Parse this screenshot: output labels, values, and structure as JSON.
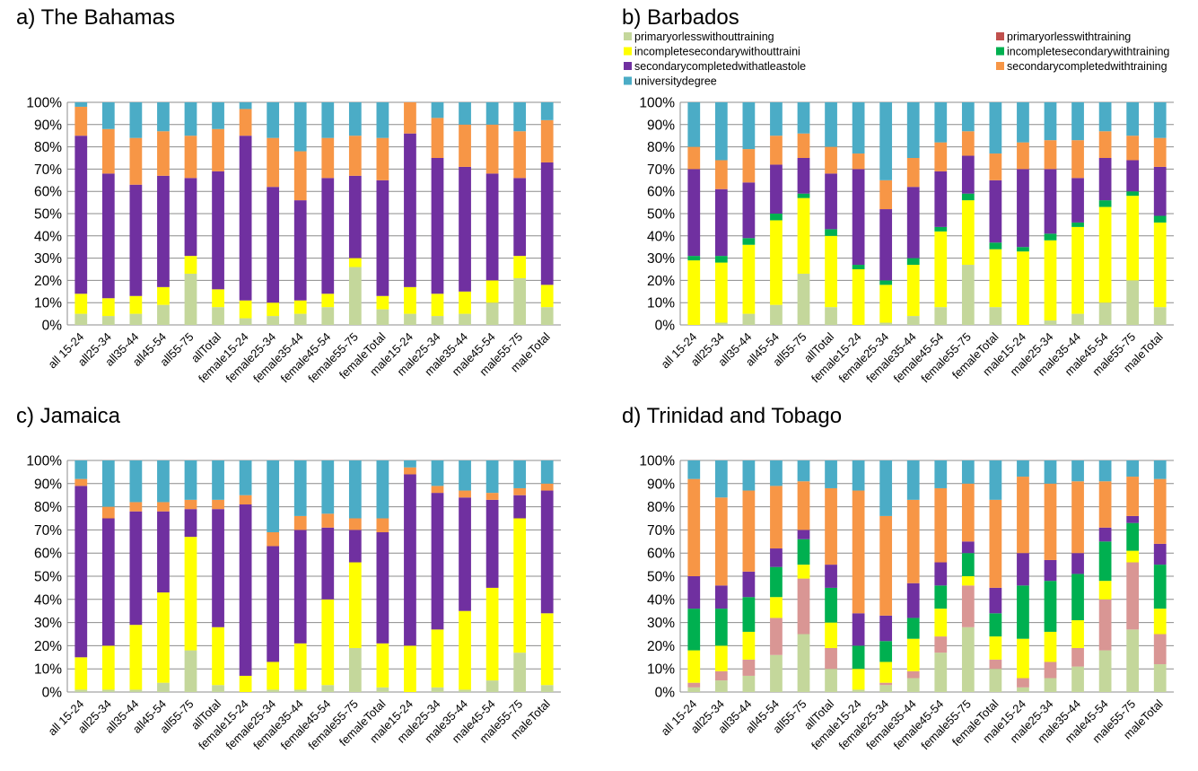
{
  "categories": [
    "all 15-24",
    "all25-34",
    "all35-44",
    "all45-54",
    "all55-75",
    "allTotal",
    "female15-24",
    "female25-34",
    "female35-44",
    "female45-54",
    "female55-75",
    "femaleTotal",
    "male15-24",
    "male25-34",
    "male35-44",
    "male45-54",
    "male55-75",
    "maleTotal"
  ],
  "series_names": [
    "primaryorlesswithouttraining",
    "primaryorlesswithtraining",
    "incompletesecondarywithouttraini",
    "incompletesecondarywithtraining",
    "secondarycompletedwithatleastole",
    "secondarycompletedwithtraining",
    "universitydegree"
  ],
  "colors": {
    "primaryorlesswithouttraining": "#c4d79b",
    "primaryorlesswithtraining": "#c0504d",
    "primaryorlesswithtraining_tt": "#d99694",
    "incompletesecondarywithouttraini": "#ffff00",
    "incompletesecondarywithtraining": "#00b050",
    "secondarycompletedwithatleastole": "#7030a0",
    "secondarycompletedwithtraining": "#f79646",
    "universitydegree": "#4bacc6"
  },
  "y_ticks": [
    "0%",
    "10%",
    "20%",
    "30%",
    "40%",
    "50%",
    "60%",
    "70%",
    "80%",
    "90%",
    "100%"
  ],
  "chart_data": [
    {
      "type": "bar",
      "stacked": true,
      "title": "The Bahamas",
      "panel_letter": "a)",
      "ylim": [
        0,
        100
      ],
      "legend": "none",
      "series": [
        {
          "name": "primaryorlesswithouttraining",
          "values": [
            5,
            4,
            5,
            9,
            23,
            8,
            3,
            4,
            5,
            8,
            26,
            7,
            5,
            4,
            5,
            10,
            21,
            8
          ]
        },
        {
          "name": "primaryorlesswithtraining",
          "values": [
            0,
            0,
            0,
            0,
            0,
            0,
            0,
            0,
            0,
            0,
            0,
            0,
            0,
            0,
            0,
            0,
            0,
            0
          ]
        },
        {
          "name": "incompletesecondarywithouttraini",
          "values": [
            9,
            8,
            8,
            8,
            8,
            8,
            8,
            6,
            6,
            6,
            4,
            6,
            12,
            10,
            10,
            10,
            10,
            10
          ]
        },
        {
          "name": "incompletesecondarywithtraining",
          "values": [
            0,
            0,
            0,
            0,
            0,
            0,
            0,
            0,
            0,
            0,
            0,
            0,
            0,
            0,
            0,
            0,
            0,
            0
          ]
        },
        {
          "name": "secondarycompletedwithatleastole",
          "values": [
            71,
            56,
            50,
            50,
            35,
            53,
            74,
            52,
            45,
            52,
            37,
            52,
            69,
            61,
            56,
            48,
            35,
            55
          ]
        },
        {
          "name": "secondarycompletedwithtraining",
          "values": [
            13,
            20,
            21,
            20,
            19,
            19,
            12,
            22,
            22,
            18,
            18,
            19,
            14,
            18,
            19,
            22,
            21,
            19
          ]
        },
        {
          "name": "universitydegree",
          "values": [
            2,
            12,
            16,
            13,
            15,
            12,
            3,
            16,
            22,
            16,
            15,
            16,
            0,
            7,
            10,
            10,
            13,
            8
          ]
        }
      ]
    },
    {
      "type": "bar",
      "stacked": true,
      "title": "Barbados",
      "panel_letter": "b)",
      "ylim": [
        0,
        100
      ],
      "legend": "top",
      "series": [
        {
          "name": "primaryorlesswithouttraining",
          "values": [
            0,
            1,
            5,
            9,
            23,
            8,
            0,
            1,
            4,
            8,
            27,
            8,
            0,
            2,
            5,
            10,
            20,
            8
          ]
        },
        {
          "name": "primaryorlesswithtraining",
          "values": [
            0,
            0,
            0,
            0,
            0,
            0,
            0,
            0,
            0,
            0,
            0,
            0,
            0,
            0,
            0,
            0,
            0,
            0
          ]
        },
        {
          "name": "incompletesecondarywithouttraini",
          "values": [
            29,
            27,
            31,
            38,
            34,
            32,
            25,
            17,
            23,
            34,
            29,
            26,
            33,
            36,
            39,
            43,
            38,
            38
          ]
        },
        {
          "name": "incompletesecondarywithtraining",
          "values": [
            2,
            3,
            3,
            3,
            2,
            3,
            2,
            2,
            3,
            2,
            3,
            3,
            2,
            3,
            2,
            3,
            2,
            3
          ]
        },
        {
          "name": "secondarycompletedwithatleastole",
          "values": [
            39,
            30,
            25,
            22,
            16,
            25,
            43,
            32,
            32,
            25,
            17,
            28,
            35,
            29,
            20,
            19,
            14,
            22
          ]
        },
        {
          "name": "secondarycompletedwithtraining",
          "values": [
            10,
            13,
            15,
            13,
            11,
            12,
            7,
            13,
            13,
            13,
            11,
            12,
            12,
            13,
            17,
            12,
            11,
            13
          ]
        },
        {
          "name": "universitydegree",
          "values": [
            20,
            26,
            21,
            15,
            14,
            20,
            23,
            35,
            25,
            18,
            13,
            23,
            18,
            17,
            17,
            13,
            15,
            16
          ]
        }
      ]
    },
    {
      "type": "bar",
      "stacked": true,
      "title": "Jamaica",
      "panel_letter": "c)",
      "ylim": [
        0,
        100
      ],
      "legend": "none",
      "series": [
        {
          "name": "primaryorlesswithouttraining",
          "values": [
            1,
            1,
            1,
            4,
            18,
            3,
            0,
            1,
            1,
            3,
            19,
            2,
            0,
            2,
            1,
            5,
            17,
            3
          ]
        },
        {
          "name": "primaryorlesswithtraining",
          "values": [
            0,
            0,
            0,
            0,
            0,
            0,
            0,
            0,
            0,
            0,
            0,
            0,
            0,
            0,
            0,
            0,
            0,
            0
          ]
        },
        {
          "name": "incompletesecondarywithouttraini",
          "values": [
            14,
            19,
            28,
            39,
            49,
            25,
            7,
            12,
            20,
            37,
            37,
            19,
            20,
            25,
            34,
            40,
            58,
            31
          ]
        },
        {
          "name": "incompletesecondarywithtraining",
          "values": [
            0,
            0,
            0,
            0,
            0,
            0,
            0,
            0,
            0,
            0,
            0,
            0,
            0,
            0,
            0,
            0,
            0,
            0
          ]
        },
        {
          "name": "secondarycompletedwithatleastole",
          "values": [
            74,
            55,
            49,
            35,
            12,
            51,
            74,
            50,
            49,
            31,
            14,
            48,
            74,
            59,
            49,
            38,
            10,
            53
          ]
        },
        {
          "name": "secondarycompletedwithtraining",
          "values": [
            3,
            5,
            4,
            4,
            4,
            4,
            4,
            6,
            6,
            6,
            5,
            6,
            3,
            3,
            3,
            3,
            3,
            3
          ]
        },
        {
          "name": "universitydegree",
          "values": [
            8,
            20,
            18,
            18,
            17,
            17,
            15,
            31,
            24,
            23,
            25,
            25,
            3,
            11,
            13,
            14,
            12,
            10
          ]
        }
      ]
    },
    {
      "type": "bar",
      "stacked": true,
      "title": "Trinidad and Tobago",
      "panel_letter": "d)",
      "ylim": [
        0,
        100
      ],
      "legend": "none",
      "series": [
        {
          "name": "primaryorlesswithouttraining",
          "values": [
            2,
            5,
            7,
            16,
            25,
            10,
            1,
            3,
            6,
            17,
            28,
            10,
            2,
            6,
            11,
            18,
            27,
            12
          ]
        },
        {
          "name": "primaryorlesswithtraining",
          "values": [
            2,
            4,
            7,
            16,
            24,
            9,
            0,
            1,
            3,
            7,
            18,
            4,
            4,
            7,
            8,
            22,
            29,
            13
          ]
        },
        {
          "name": "incompletesecondarywithouttraini",
          "values": [
            14,
            11,
            12,
            9,
            6,
            11,
            9,
            9,
            14,
            12,
            4,
            10,
            17,
            13,
            12,
            8,
            5,
            11
          ]
        },
        {
          "name": "incompletesecondarywithtraining",
          "values": [
            18,
            16,
            15,
            13,
            11,
            15,
            10,
            9,
            9,
            10,
            10,
            10,
            23,
            22,
            20,
            17,
            12,
            19
          ]
        },
        {
          "name": "secondarycompletedwithatleastole",
          "values": [
            14,
            10,
            11,
            8,
            4,
            10,
            14,
            11,
            15,
            10,
            5,
            11,
            14,
            9,
            9,
            6,
            3,
            9
          ]
        },
        {
          "name": "secondarycompletedwithtraining",
          "values": [
            42,
            38,
            35,
            27,
            21,
            33,
            53,
            43,
            36,
            32,
            25,
            38,
            33,
            33,
            31,
            20,
            17,
            28
          ]
        },
        {
          "name": "universitydegree",
          "values": [
            8,
            16,
            13,
            11,
            9,
            12,
            13,
            24,
            17,
            12,
            10,
            17,
            7,
            10,
            9,
            9,
            7,
            8
          ]
        }
      ]
    }
  ]
}
